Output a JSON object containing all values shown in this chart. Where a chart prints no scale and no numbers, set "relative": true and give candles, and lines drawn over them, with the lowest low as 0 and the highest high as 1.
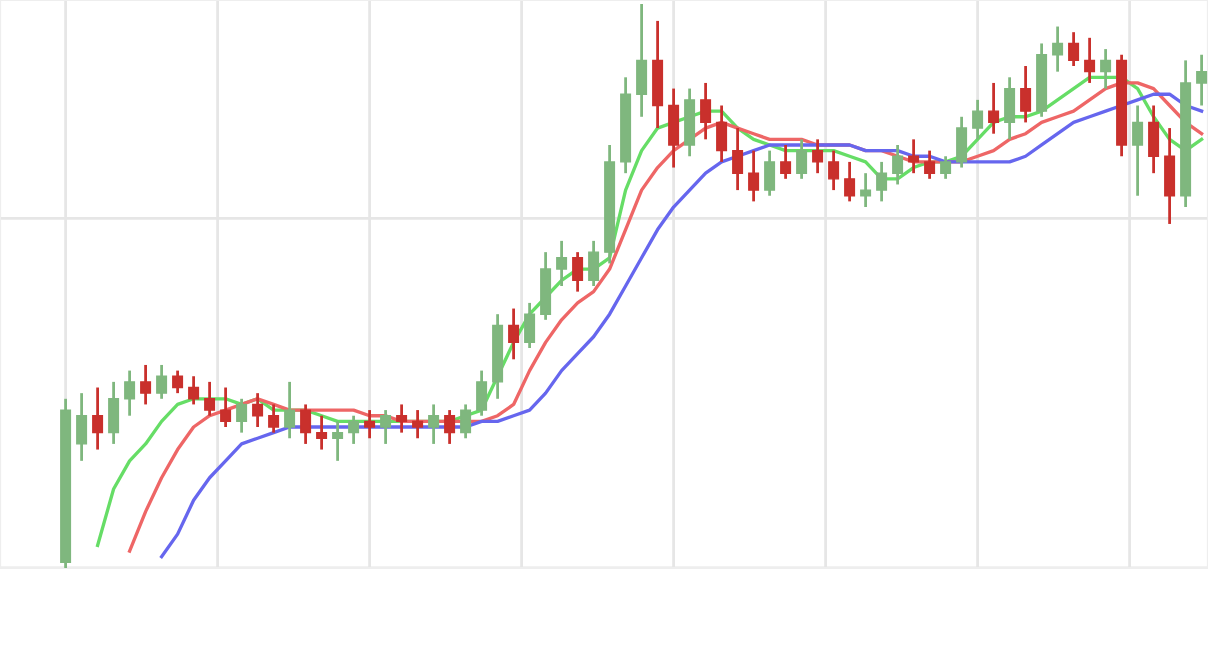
{
  "chart_data": {
    "type": "candlestick",
    "relative": true,
    "grid": true,
    "legend": false,
    "categories": [
      null,
      null,
      null,
      null,
      null,
      null,
      null,
      null,
      null,
      null,
      null,
      null,
      null,
      null,
      null,
      null,
      null,
      null,
      null,
      null,
      null,
      null,
      null,
      null,
      null,
      null,
      null,
      null,
      null,
      null,
      null,
      null,
      null,
      null,
      null,
      null,
      null,
      null,
      null,
      null,
      null,
      null,
      null,
      null,
      null,
      null,
      null,
      null,
      null,
      null,
      null,
      null,
      null,
      null,
      null,
      null,
      null,
      null,
      null,
      null,
      null,
      null,
      null,
      null,
      null,
      null,
      null,
      null,
      null,
      null,
      null,
      null
    ],
    "series": [
      {
        "type": "candlestick",
        "ohlc": [
          [
            0.01,
            0.3,
            0.0,
            0.28
          ],
          [
            0.22,
            0.31,
            0.19,
            0.27
          ],
          [
            0.27,
            0.32,
            0.21,
            0.24
          ],
          [
            0.24,
            0.33,
            0.22,
            0.3
          ],
          [
            0.3,
            0.35,
            0.27,
            0.33
          ],
          [
            0.33,
            0.36,
            0.29,
            0.31
          ],
          [
            0.31,
            0.36,
            0.3,
            0.34
          ],
          [
            0.34,
            0.35,
            0.31,
            0.32
          ],
          [
            0.32,
            0.34,
            0.29,
            0.3
          ],
          [
            0.3,
            0.33,
            0.27,
            0.28
          ],
          [
            0.28,
            0.32,
            0.25,
            0.26
          ],
          [
            0.26,
            0.3,
            0.24,
            0.29
          ],
          [
            0.29,
            0.31,
            0.25,
            0.27
          ],
          [
            0.27,
            0.29,
            0.24,
            0.25
          ],
          [
            0.25,
            0.33,
            0.23,
            0.28
          ],
          [
            0.28,
            0.29,
            0.22,
            0.24
          ],
          [
            0.24,
            0.27,
            0.21,
            0.23
          ],
          [
            0.23,
            0.26,
            0.19,
            0.24
          ],
          [
            0.24,
            0.27,
            0.22,
            0.26
          ],
          [
            0.26,
            0.28,
            0.23,
            0.25
          ],
          [
            0.25,
            0.28,
            0.22,
            0.27
          ],
          [
            0.27,
            0.29,
            0.24,
            0.26
          ],
          [
            0.26,
            0.28,
            0.23,
            0.25
          ],
          [
            0.25,
            0.29,
            0.22,
            0.27
          ],
          [
            0.27,
            0.28,
            0.22,
            0.24
          ],
          [
            0.24,
            0.29,
            0.23,
            0.28
          ],
          [
            0.28,
            0.35,
            0.27,
            0.33
          ],
          [
            0.33,
            0.45,
            0.3,
            0.43
          ],
          [
            0.43,
            0.46,
            0.37,
            0.4
          ],
          [
            0.4,
            0.47,
            0.39,
            0.45
          ],
          [
            0.45,
            0.56,
            0.44,
            0.53
          ],
          [
            0.53,
            0.58,
            0.5,
            0.55
          ],
          [
            0.55,
            0.56,
            0.49,
            0.51
          ],
          [
            0.51,
            0.58,
            0.5,
            0.56
          ],
          [
            0.56,
            0.75,
            0.54,
            0.72
          ],
          [
            0.72,
            0.87,
            0.7,
            0.84
          ],
          [
            0.84,
            1.0,
            0.8,
            0.9
          ],
          [
            0.9,
            0.97,
            0.78,
            0.82
          ],
          [
            0.82,
            0.85,
            0.71,
            0.75
          ],
          [
            0.75,
            0.85,
            0.73,
            0.83
          ],
          [
            0.83,
            0.86,
            0.76,
            0.79
          ],
          [
            0.79,
            0.82,
            0.72,
            0.74
          ],
          [
            0.74,
            0.78,
            0.67,
            0.7
          ],
          [
            0.7,
            0.74,
            0.65,
            0.67
          ],
          [
            0.67,
            0.74,
            0.66,
            0.72
          ],
          [
            0.72,
            0.75,
            0.69,
            0.7
          ],
          [
            0.7,
            0.76,
            0.69,
            0.74
          ],
          [
            0.74,
            0.76,
            0.7,
            0.72
          ],
          [
            0.72,
            0.74,
            0.67,
            0.69
          ],
          [
            0.69,
            0.72,
            0.65,
            0.66
          ],
          [
            0.66,
            0.7,
            0.64,
            0.67
          ],
          [
            0.67,
            0.72,
            0.65,
            0.7
          ],
          [
            0.7,
            0.75,
            0.68,
            0.73
          ],
          [
            0.73,
            0.76,
            0.7,
            0.72
          ],
          [
            0.72,
            0.74,
            0.69,
            0.7
          ],
          [
            0.7,
            0.73,
            0.69,
            0.72
          ],
          [
            0.72,
            0.8,
            0.71,
            0.78
          ],
          [
            0.78,
            0.83,
            0.76,
            0.81
          ],
          [
            0.81,
            0.86,
            0.77,
            0.79
          ],
          [
            0.79,
            0.87,
            0.76,
            0.85
          ],
          [
            0.85,
            0.89,
            0.79,
            0.81
          ],
          [
            0.81,
            0.93,
            0.8,
            0.91
          ],
          [
            0.91,
            0.96,
            0.88,
            0.93
          ],
          [
            0.93,
            0.95,
            0.89,
            0.9
          ],
          [
            0.9,
            0.94,
            0.86,
            0.88
          ],
          [
            0.88,
            0.92,
            0.85,
            0.9
          ],
          [
            0.9,
            0.91,
            0.73,
            0.75
          ],
          [
            0.75,
            0.82,
            0.66,
            0.79
          ],
          [
            0.79,
            0.82,
            0.7,
            0.73
          ],
          [
            0.73,
            0.78,
            0.61,
            0.66
          ],
          [
            0.66,
            0.9,
            0.64,
            0.86
          ],
          [
            0.86,
            0.91,
            0.82,
            0.88
          ]
        ],
        "colors": [
          "#7fb77e",
          "#7fb77e",
          "#c9302c",
          "#7fb77e",
          "#7fb77e",
          "#c9302c",
          "#7fb77e",
          "#c9302c",
          "#c9302c",
          "#c9302c",
          "#c9302c",
          "#7fb77e",
          "#c9302c",
          "#c9302c",
          "#7fb77e",
          "#c9302c",
          "#c9302c",
          "#7fb77e",
          "#7fb77e",
          "#c9302c",
          "#7fb77e",
          "#c9302c",
          "#c9302c",
          "#7fb77e",
          "#c9302c",
          "#7fb77e",
          "#7fb77e",
          "#7fb77e",
          "#c9302c",
          "#7fb77e",
          "#7fb77e",
          "#7fb77e",
          "#c9302c",
          "#7fb77e",
          "#7fb77e",
          "#7fb77e",
          "#7fb77e",
          "#c9302c",
          "#c9302c",
          "#7fb77e",
          "#c9302c",
          "#c9302c",
          "#c9302c",
          "#c9302c",
          "#7fb77e",
          "#c9302c",
          "#7fb77e",
          "#c9302c",
          "#c9302c",
          "#c9302c",
          "#7fb77e",
          "#7fb77e",
          "#7fb77e",
          "#c9302c",
          "#c9302c",
          "#7fb77e",
          "#7fb77e",
          "#7fb77e",
          "#c9302c",
          "#7fb77e",
          "#c9302c",
          "#7fb77e",
          "#7fb77e",
          "#c9302c",
          "#c9302c",
          "#7fb77e",
          "#c9302c",
          "#7fb77e",
          "#c9302c",
          "#c9302c",
          "#7fb77e",
          "#7fb77e"
        ]
      },
      {
        "type": "line",
        "color": "#66dd66",
        "values": [
          null,
          null,
          0.04,
          0.14,
          0.19,
          0.22,
          0.26,
          0.29,
          0.3,
          0.3,
          0.3,
          0.29,
          0.3,
          0.28,
          0.28,
          0.28,
          0.27,
          0.26,
          0.26,
          0.26,
          0.26,
          0.26,
          0.26,
          0.26,
          0.26,
          0.27,
          0.28,
          0.34,
          0.4,
          0.45,
          0.48,
          0.51,
          0.53,
          0.53,
          0.55,
          0.67,
          0.74,
          0.78,
          0.79,
          0.8,
          0.81,
          0.81,
          0.78,
          0.76,
          0.75,
          0.74,
          0.74,
          0.74,
          0.74,
          0.73,
          0.72,
          0.69,
          0.69,
          0.71,
          0.72,
          0.72,
          0.73,
          0.76,
          0.79,
          0.8,
          0.8,
          0.81,
          0.83,
          0.85,
          0.87,
          0.87,
          0.87,
          0.85,
          0.8,
          0.76,
          0.74,
          0.76
        ]
      },
      {
        "type": "line",
        "color": "#ee6666",
        "values": [
          null,
          null,
          null,
          null,
          0.03,
          0.1,
          0.16,
          0.21,
          0.25,
          0.27,
          0.28,
          0.29,
          0.3,
          0.29,
          0.28,
          0.28,
          0.28,
          0.28,
          0.28,
          0.27,
          0.27,
          0.26,
          0.26,
          0.26,
          0.26,
          0.26,
          0.26,
          0.27,
          0.29,
          0.35,
          0.4,
          0.44,
          0.47,
          0.49,
          0.53,
          0.6,
          0.67,
          0.71,
          0.74,
          0.76,
          0.78,
          0.79,
          0.78,
          0.77,
          0.76,
          0.76,
          0.76,
          0.75,
          0.75,
          0.75,
          0.74,
          0.74,
          0.73,
          0.72,
          0.72,
          0.72,
          0.72,
          0.73,
          0.74,
          0.76,
          0.77,
          0.79,
          0.8,
          0.81,
          0.83,
          0.85,
          0.86,
          0.86,
          0.85,
          0.82,
          0.79,
          0.77
        ]
      },
      {
        "type": "line",
        "color": "#6666ee",
        "values": [
          null,
          null,
          null,
          null,
          null,
          null,
          0.02,
          0.06,
          0.12,
          0.16,
          0.19,
          0.22,
          0.23,
          0.24,
          0.25,
          0.25,
          0.25,
          0.25,
          0.25,
          0.25,
          0.25,
          0.25,
          0.25,
          0.25,
          0.25,
          0.25,
          0.26,
          0.26,
          0.27,
          0.28,
          0.31,
          0.35,
          0.38,
          0.41,
          0.45,
          0.5,
          0.55,
          0.6,
          0.64,
          0.67,
          0.7,
          0.72,
          0.73,
          0.74,
          0.75,
          0.75,
          0.75,
          0.75,
          0.75,
          0.75,
          0.74,
          0.74,
          0.74,
          0.73,
          0.73,
          0.72,
          0.72,
          0.72,
          0.72,
          0.72,
          0.73,
          0.75,
          0.77,
          0.79,
          0.8,
          0.81,
          0.82,
          0.83,
          0.84,
          0.84,
          0.82,
          0.81
        ]
      }
    ]
  }
}
